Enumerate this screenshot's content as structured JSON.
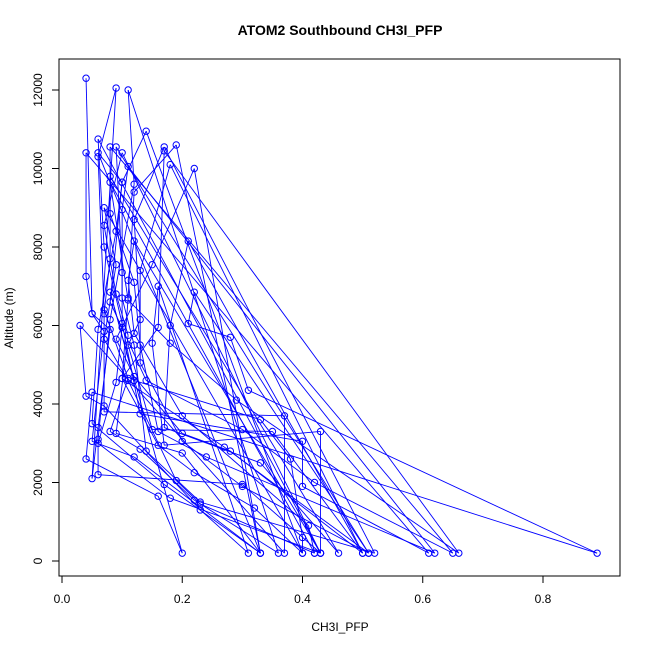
{
  "chart_data": {
    "type": "line",
    "title": "ATOM2 Southbound CH3I_PFP",
    "xlabel": "CH3I_PFP",
    "ylabel": "Altitude (m)",
    "xlim": [
      0.0,
      0.9
    ],
    "ylim": [
      0,
      12500
    ],
    "xticks": [
      0.0,
      0.2,
      0.4,
      0.6,
      0.8
    ],
    "xtick_labels": [
      "0.0",
      "0.2",
      "0.4",
      "0.6",
      "0.8"
    ],
    "yticks": [
      0,
      2000,
      4000,
      6000,
      8000,
      10000,
      12000
    ],
    "ytick_labels": [
      "0",
      "2000",
      "4000",
      "6000",
      "8000",
      "10000",
      "12000"
    ],
    "grid": false,
    "marker": "open-circle",
    "color": "#0000ff",
    "series": [
      {
        "values": [
          [
            0.04,
            12300
          ],
          [
            0.05,
            6300
          ],
          [
            0.08,
            5900
          ],
          [
            0.06,
            3400
          ],
          [
            0.05,
            2100
          ],
          [
            0.09,
            12050
          ],
          [
            0.06,
            10300
          ],
          [
            0.07,
            6400
          ],
          [
            0.11,
            4650
          ],
          [
            0.08,
            3300
          ],
          [
            0.13,
            2850
          ],
          [
            0.22,
            1550
          ],
          [
            0.36,
            200
          ],
          [
            0.11,
            12000
          ],
          [
            0.12,
            9600
          ],
          [
            0.08,
            6150
          ],
          [
            0.06,
            3100
          ],
          [
            0.06,
            2200
          ],
          [
            0.3,
            1950
          ],
          [
            0.43,
            200
          ],
          [
            0.06,
            10750
          ],
          [
            0.07,
            8000
          ],
          [
            0.1,
            6050
          ],
          [
            0.13,
            3750
          ],
          [
            0.4,
            3050
          ],
          [
            0.4,
            1900
          ],
          [
            0.61,
            200
          ],
          [
            0.04,
            10400
          ],
          [
            0.04,
            7250
          ],
          [
            0.05,
            6300
          ],
          [
            0.07,
            5850
          ],
          [
            0.05,
            3050
          ],
          [
            0.12,
            2650
          ],
          [
            0.33,
            200
          ],
          [
            0.19,
            10600
          ],
          [
            0.12,
            9400
          ],
          [
            0.11,
            6700
          ],
          [
            0.1,
            4650
          ],
          [
            0.16,
            2950
          ],
          [
            0.22,
            2250
          ],
          [
            0.32,
            1350
          ],
          [
            0.4,
            200
          ],
          [
            0.14,
            10950
          ],
          [
            0.1,
            9650
          ],
          [
            0.09,
            8400
          ],
          [
            0.06,
            5900
          ],
          [
            0.05,
            3500
          ],
          [
            0.17,
            1950
          ],
          [
            0.33,
            200
          ],
          [
            0.22,
            10000
          ],
          [
            0.15,
            7550
          ],
          [
            0.09,
            5650
          ],
          [
            0.12,
            4700
          ],
          [
            0.2,
            3250
          ],
          [
            0.28,
            2800
          ],
          [
            0.5,
            200
          ],
          [
            0.18,
            10100
          ],
          [
            0.13,
            7400
          ],
          [
            0.13,
            5050
          ],
          [
            0.2,
            3050
          ],
          [
            0.3,
            1900
          ],
          [
            0.51,
            200
          ],
          [
            0.09,
            10550
          ],
          [
            0.1,
            7350
          ],
          [
            0.1,
            5950
          ],
          [
            0.09,
            4550
          ],
          [
            0.06,
            3000
          ],
          [
            0.18,
            1600
          ],
          [
            0.43,
            200
          ],
          [
            0.1,
            10400
          ],
          [
            0.07,
            8550
          ],
          [
            0.09,
            6800
          ],
          [
            0.11,
            5750
          ],
          [
            0.09,
            3250
          ],
          [
            0.2,
            2750
          ],
          [
            0.33,
            200
          ],
          [
            0.06,
            10400
          ],
          [
            0.1,
            9650
          ],
          [
            0.08,
            6600
          ],
          [
            0.14,
            4600
          ],
          [
            0.3,
            3350
          ],
          [
            0.42,
            2000
          ],
          [
            0.65,
            200
          ],
          [
            0.08,
            10550
          ],
          [
            0.08,
            8850
          ],
          [
            0.12,
            7100
          ],
          [
            0.13,
            5500
          ],
          [
            0.16,
            3300
          ],
          [
            0.24,
            2650
          ],
          [
            0.62,
            200
          ],
          [
            0.11,
            10050
          ],
          [
            0.1,
            8950
          ],
          [
            0.1,
            6700
          ],
          [
            0.12,
            5500
          ],
          [
            0.14,
            2800
          ],
          [
            0.23,
            1500
          ],
          [
            0.52,
            200
          ],
          [
            0.17,
            10550
          ],
          [
            0.12,
            8700
          ],
          [
            0.13,
            6150
          ],
          [
            0.11,
            5500
          ],
          [
            0.15,
            3350
          ],
          [
            0.35,
            3300
          ],
          [
            0.5,
            200
          ],
          [
            0.21,
            8150
          ],
          [
            0.18,
            6000
          ],
          [
            0.17,
            3400
          ],
          [
            0.33,
            2500
          ],
          [
            0.46,
            200
          ],
          [
            0.08,
            9800
          ],
          [
            0.08,
            7700
          ],
          [
            0.07,
            6300
          ],
          [
            0.07,
            3800
          ],
          [
            0.37,
            3700
          ],
          [
            0.37,
            200
          ],
          [
            0.03,
            6000
          ],
          [
            0.04,
            4200
          ],
          [
            0.07,
            3950
          ],
          [
            0.23,
            1300
          ],
          [
            0.31,
            200
          ],
          [
            0.16,
            7000
          ],
          [
            0.15,
            5550
          ],
          [
            0.17,
            2950
          ],
          [
            0.43,
            3300
          ],
          [
            0.43,
            200
          ],
          [
            0.12,
            8150
          ],
          [
            0.11,
            7150
          ],
          [
            0.12,
            5800
          ],
          [
            0.2,
            3700
          ],
          [
            0.41,
            900
          ],
          [
            0.42,
            200
          ],
          [
            0.08,
            9650
          ],
          [
            0.11,
            6650
          ],
          [
            0.18,
            5550
          ],
          [
            0.29,
            4100
          ],
          [
            0.66,
            200
          ],
          [
            0.17,
            10450
          ],
          [
            0.16,
            5950
          ],
          [
            0.1,
            4650
          ],
          [
            0.27,
            2900
          ],
          [
            0.51,
            200
          ],
          [
            0.22,
            6850
          ],
          [
            0.21,
            6050
          ],
          [
            0.28,
            5700
          ],
          [
            0.31,
            4350
          ],
          [
            0.89,
            200
          ],
          [
            0.05,
            4300
          ],
          [
            0.04,
            2600
          ],
          [
            0.16,
            1650
          ],
          [
            0.2,
            200
          ],
          [
            0.08,
            6850
          ],
          [
            0.12,
            4600
          ],
          [
            0.33,
            3600
          ],
          [
            0.38,
            2600
          ],
          [
            0.4,
            600
          ],
          [
            0.4,
            200
          ],
          [
            0.07,
            9000
          ],
          [
            0.09,
            7550
          ],
          [
            0.07,
            5650
          ],
          [
            0.11,
            4600
          ],
          [
            0.19,
            2050
          ],
          [
            0.23,
            1450
          ],
          [
            0.42,
            200
          ]
        ]
      }
    ]
  }
}
